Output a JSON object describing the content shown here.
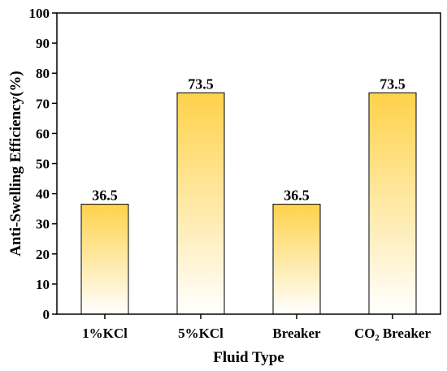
{
  "chart_data": {
    "type": "bar",
    "xlabel": "Fluid Type",
    "ylabel": "Anti-Swelling Efficiency(%)",
    "ylim": [
      0,
      100
    ],
    "yticks": [
      "0",
      "10",
      "20",
      "30",
      "40",
      "50",
      "60",
      "70",
      "80",
      "90",
      "100"
    ],
    "categories": [
      "1%KCl",
      "5%KCl",
      "Breaker",
      "CO₂ Breaker"
    ],
    "values": [
      36.5,
      73.5,
      36.5,
      73.5
    ],
    "data_labels": [
      "36.5",
      "73.5",
      "36.5",
      "73.5"
    ],
    "bar_gradient": {
      "top": "#ffd24a",
      "bottom": "#ffffff"
    },
    "bar_edge_color": "#000000",
    "grid": false,
    "legend": "none"
  }
}
